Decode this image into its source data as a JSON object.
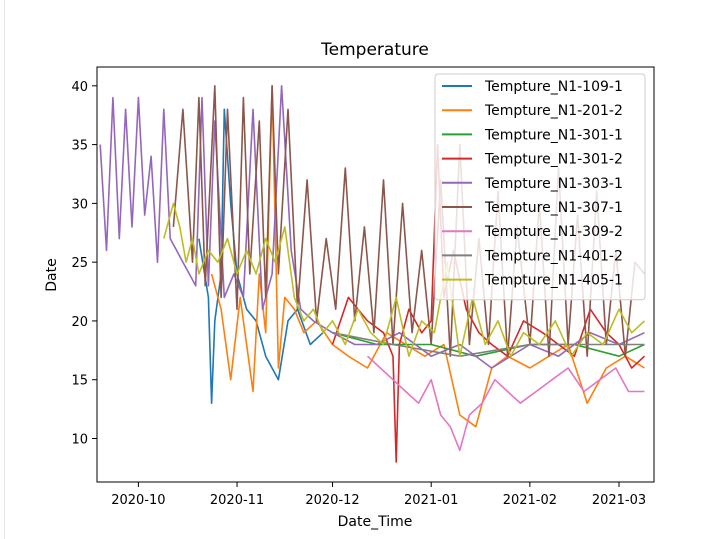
{
  "chart_data": {
    "type": "line",
    "title": "Temperature",
    "xlabel": "Date_Time",
    "ylabel": "Date",
    "x_tick_labels": [
      "2020-10",
      "2020-11",
      "2020-12",
      "2021-01",
      "2021-02",
      "2021-03"
    ],
    "x_tick_dates": [
      "2020-10-01",
      "2020-11-01",
      "2020-12-01",
      "2021-01-01",
      "2021-02-01",
      "2021-03-01"
    ],
    "xlim": [
      "2020-09-18",
      "2021-03-12"
    ],
    "y_ticks": [
      10,
      15,
      20,
      25,
      30,
      35,
      40
    ],
    "ylim": [
      6.3,
      41.6
    ],
    "legend_position": "top-right",
    "grid": false,
    "series": [
      {
        "name": "Tempture_N1-109-1",
        "color": "#1f77b4",
        "x": [
          "2020-10-20",
          "2020-10-23",
          "2020-10-24",
          "2020-10-25",
          "2020-10-27",
          "2020-10-28",
          "2020-10-30",
          "2020-11-01",
          "2020-11-04",
          "2020-11-07",
          "2020-11-10",
          "2020-11-14",
          "2020-11-17",
          "2020-11-20",
          "2020-11-24",
          "2020-11-28"
        ],
        "y": [
          27,
          22,
          13,
          20,
          24,
          38,
          30,
          24,
          21,
          20,
          17,
          15,
          20,
          21,
          18,
          19
        ]
      },
      {
        "name": "Tempture_N1-201-2",
        "color": "#ff7f0e",
        "x": [
          "2020-10-24",
          "2020-10-27",
          "2020-10-30",
          "2020-11-02",
          "2020-11-04",
          "2020-11-06",
          "2020-11-08",
          "2020-11-10",
          "2020-11-12",
          "2020-11-14",
          "2020-11-16",
          "2020-11-19",
          "2020-11-22",
          "2020-11-26",
          "2020-12-01",
          "2020-12-06",
          "2020-12-12",
          "2020-12-18",
          "2020-12-24",
          "2020-12-30",
          "2021-01-05",
          "2021-01-10",
          "2021-01-15",
          "2021-01-20",
          "2021-01-25",
          "2021-02-01",
          "2021-02-07",
          "2021-02-13",
          "2021-02-19",
          "2021-02-25",
          "2021-03-03",
          "2021-03-09"
        ],
        "y": [
          24,
          21,
          15,
          22,
          18,
          14,
          24,
          19,
          40,
          16,
          22,
          21,
          19,
          20,
          18,
          17,
          16,
          19,
          18,
          17,
          18,
          12,
          11,
          16,
          17,
          16,
          17,
          18,
          13,
          16,
          17,
          16
        ]
      },
      {
        "name": "Tempture_N1-301-1",
        "color": "#2ca02c",
        "x": [
          "2020-12-01",
          "2020-12-15",
          "2021-01-01",
          "2021-01-15",
          "2021-02-01",
          "2021-02-15",
          "2021-03-01",
          "2021-03-09"
        ],
        "y": [
          19,
          18,
          18,
          17,
          18,
          18,
          17,
          18
        ]
      },
      {
        "name": "Tempture_N1-301-2",
        "color": "#d62728",
        "x": [
          "2020-12-01",
          "2020-12-06",
          "2020-12-12",
          "2020-12-17",
          "2020-12-20",
          "2020-12-21",
          "2020-12-22",
          "2020-12-25",
          "2020-12-29",
          "2021-01-01",
          "2021-01-03",
          "2021-01-05",
          "2021-01-08",
          "2021-01-12",
          "2021-01-16",
          "2021-01-20",
          "2021-01-25",
          "2021-01-30",
          "2021-02-05",
          "2021-02-10",
          "2021-02-15",
          "2021-02-20",
          "2021-02-25",
          "2021-03-01",
          "2021-03-05",
          "2021-03-09"
        ],
        "y": [
          18,
          22,
          20,
          19,
          17,
          8,
          18,
          21,
          19,
          20,
          35,
          22,
          26,
          21,
          19,
          18,
          17,
          20,
          19,
          18,
          17,
          21,
          19,
          18,
          16,
          17
        ]
      },
      {
        "name": "Tempture_N1-303-1",
        "color": "#9467bd",
        "x": [
          "2020-09-19",
          "2020-09-21",
          "2020-09-23",
          "2020-09-25",
          "2020-09-27",
          "2020-09-29",
          "2020-10-01",
          "2020-10-03",
          "2020-10-05",
          "2020-10-07",
          "2020-10-09",
          "2020-10-11",
          "2020-10-13",
          "2020-10-15",
          "2020-10-17",
          "2020-10-19",
          "2020-10-21",
          "2020-10-23",
          "2020-10-25",
          "2020-10-28",
          "2020-10-31",
          "2020-11-03",
          "2020-11-06",
          "2020-11-09",
          "2020-11-12",
          "2020-11-15",
          "2020-11-18",
          "2020-11-21",
          "2020-11-25",
          "2020-12-01",
          "2020-12-08",
          "2020-12-15",
          "2020-12-22",
          "2021-01-01",
          "2021-01-10",
          "2021-01-20",
          "2021-02-01",
          "2021-02-10",
          "2021-02-20",
          "2021-03-01",
          "2021-03-09"
        ],
        "y": [
          35,
          26,
          39,
          27,
          38,
          28,
          39,
          29,
          34,
          25,
          38,
          27,
          26,
          25,
          24,
          23,
          39,
          23,
          37,
          22,
          24,
          22,
          38,
          21,
          24,
          40,
          26,
          21,
          20,
          19,
          18,
          18,
          19,
          17,
          18,
          16,
          18,
          17,
          19,
          18,
          19
        ]
      },
      {
        "name": "Tempture_N1-307-1",
        "color": "#8c564b",
        "x": [
          "2020-10-12",
          "2020-10-15",
          "2020-10-18",
          "2020-10-20",
          "2020-10-22",
          "2020-10-25",
          "2020-10-27",
          "2020-10-29",
          "2020-11-01",
          "2020-11-03",
          "2020-11-05",
          "2020-11-08",
          "2020-11-10",
          "2020-11-12",
          "2020-11-14",
          "2020-11-17",
          "2020-11-20",
          "2020-11-23",
          "2020-11-26",
          "2020-11-29",
          "2020-12-02",
          "2020-12-05",
          "2020-12-08",
          "2020-12-11",
          "2020-12-14",
          "2020-12-17",
          "2020-12-20",
          "2020-12-23",
          "2020-12-26",
          "2020-12-29",
          "2021-01-01",
          "2021-01-04",
          "2021-01-07",
          "2021-01-10",
          "2021-01-13",
          "2021-01-16",
          "2021-01-19",
          "2021-01-22",
          "2021-01-25",
          "2021-01-28",
          "2021-02-01",
          "2021-02-04",
          "2021-02-07",
          "2021-02-10",
          "2021-02-13",
          "2021-02-16",
          "2021-02-19",
          "2021-02-22",
          "2021-02-25",
          "2021-02-28",
          "2021-03-03",
          "2021-03-06",
          "2021-03-09"
        ],
        "y": [
          28,
          38,
          25,
          39,
          23,
          40,
          22,
          38,
          21,
          39,
          24,
          37,
          22,
          40,
          24,
          38,
          21,
          32,
          20,
          27,
          21,
          33,
          20,
          28,
          19,
          32,
          18,
          30,
          19,
          26,
          18,
          32,
          17,
          35,
          18,
          27,
          18,
          31,
          17,
          28,
          18,
          30,
          17,
          33,
          18,
          29,
          17,
          31,
          18,
          26,
          17,
          25,
          24
        ]
      },
      {
        "name": "Tempture_N1-309-2",
        "color": "#e377c2",
        "x": [
          "2020-12-12",
          "2020-12-16",
          "2020-12-20",
          "2020-12-24",
          "2020-12-28",
          "2021-01-01",
          "2021-01-04",
          "2021-01-07",
          "2021-01-10",
          "2021-01-13",
          "2021-01-17",
          "2021-01-21",
          "2021-01-25",
          "2021-01-29",
          "2021-02-03",
          "2021-02-08",
          "2021-02-13",
          "2021-02-18",
          "2021-02-23",
          "2021-02-28",
          "2021-03-04",
          "2021-03-09"
        ],
        "y": [
          17,
          16,
          15,
          14,
          13,
          15,
          12,
          11,
          9,
          12,
          13,
          15,
          14,
          13,
          14,
          15,
          16,
          14,
          15,
          16,
          14,
          14
        ]
      },
      {
        "name": "Tempture_N1-401-2",
        "color": "#7f7f7f",
        "x": [
          "2020-12-01",
          "2020-12-20",
          "2021-01-10",
          "2021-02-01",
          "2021-02-20",
          "2021-03-09"
        ],
        "y": [
          19,
          18,
          17,
          18,
          18,
          18
        ]
      },
      {
        "name": "Tempture_N1-405-1",
        "color": "#bcbd22",
        "x": [
          "2020-10-09",
          "2020-10-12",
          "2020-10-14",
          "2020-10-16",
          "2020-10-18",
          "2020-10-20",
          "2020-10-23",
          "2020-10-26",
          "2020-10-29",
          "2020-11-01",
          "2020-11-04",
          "2020-11-07",
          "2020-11-10",
          "2020-11-13",
          "2020-11-16",
          "2020-11-19",
          "2020-11-22",
          "2020-11-25",
          "2020-11-28",
          "2020-12-01",
          "2020-12-05",
          "2020-12-09",
          "2020-12-13",
          "2020-12-17",
          "2020-12-21",
          "2020-12-25",
          "2020-12-29",
          "2021-01-02",
          "2021-01-06",
          "2021-01-10",
          "2021-01-14",
          "2021-01-18",
          "2021-01-22",
          "2021-01-26",
          "2021-01-30",
          "2021-02-04",
          "2021-02-09",
          "2021-02-14",
          "2021-02-19",
          "2021-02-24",
          "2021-03-01",
          "2021-03-05",
          "2021-03-09"
        ],
        "y": [
          27,
          30,
          28,
          25,
          27,
          24,
          26,
          25,
          27,
          24,
          26,
          24,
          27,
          25,
          28,
          22,
          20,
          21,
          19,
          20,
          18,
          21,
          19,
          18,
          22,
          17,
          20,
          19,
          25,
          17,
          22,
          18,
          20,
          17,
          19,
          18,
          20,
          17,
          19,
          18,
          21,
          19,
          20
        ]
      }
    ]
  }
}
